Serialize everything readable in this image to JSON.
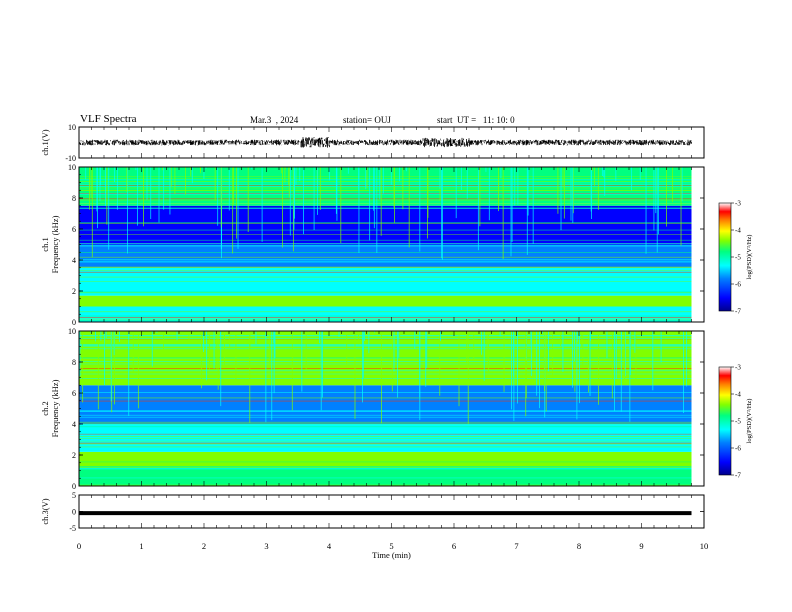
{
  "header": {
    "title": "VLF Spectra",
    "date": "Mar.3  , 2024",
    "station": "station= OUJ",
    "start": "start  UT =   11: 10: 0"
  },
  "chart_data": [
    {
      "type": "line",
      "panel": "ch1-waveform",
      "ylabel": "ch.1(V)",
      "ylim": [
        -10,
        10
      ],
      "y_ticks": [
        "10",
        "-10"
      ],
      "x_range_min": [
        0,
        9.8
      ],
      "signal_level_V": [
        -2,
        3
      ],
      "color": "#000000"
    },
    {
      "type": "heatmap",
      "panel": "ch1-spectrogram",
      "ylabel": "ch.1\nFrequency (kHz)",
      "ylim": [
        0,
        10
      ],
      "y_ticks": [
        "0",
        "2",
        "4",
        "6",
        "8",
        "10"
      ],
      "colorbar": {
        "label": "log(PSD)(V²/Hz)",
        "range": [
          -7,
          -3
        ],
        "ticks": [
          "-3",
          "-4",
          "-5",
          "-6",
          "-7"
        ]
      },
      "bands_khz": [
        {
          "from": 0,
          "to": 1.0,
          "logpsd": -5.6
        },
        {
          "from": 1.0,
          "to": 1.7,
          "logpsd": -5.0
        },
        {
          "from": 1.7,
          "to": 3.5,
          "logpsd": -5.6
        },
        {
          "from": 3.5,
          "to": 5.0,
          "logpsd": -6.0
        },
        {
          "from": 5.0,
          "to": 7.5,
          "logpsd": -6.6
        },
        {
          "from": 7.5,
          "to": 10,
          "logpsd": -5.4
        }
      ]
    },
    {
      "type": "heatmap",
      "panel": "ch2-spectrogram",
      "ylabel": "ch.2\nFrequency (kHz)",
      "ylim": [
        0,
        10
      ],
      "y_ticks": [
        "0",
        "2",
        "4",
        "6",
        "8",
        "10"
      ],
      "colorbar": {
        "label": "log(PSD)(V²/Hz)",
        "range": [
          -7,
          -3
        ],
        "ticks": [
          "-3",
          "-4",
          "-5",
          "-6",
          "-7"
        ]
      },
      "bands_khz": [
        {
          "from": 0,
          "to": 1.2,
          "logpsd": -5.4
        },
        {
          "from": 1.2,
          "to": 2.2,
          "logpsd": -5.0
        },
        {
          "from": 2.2,
          "to": 4.0,
          "logpsd": -5.6
        },
        {
          "from": 4.0,
          "to": 6.5,
          "logpsd": -5.9
        },
        {
          "from": 6.5,
          "to": 10,
          "logpsd": -5.0
        }
      ]
    },
    {
      "type": "line",
      "panel": "ch3-waveform",
      "ylabel": "ch.3(V)",
      "ylim": [
        -5,
        5
      ],
      "y_ticks": [
        "5",
        "0",
        "-5"
      ],
      "x_range_min": [
        0,
        9.8
      ],
      "value_V": -0.5,
      "color": "#000000"
    }
  ],
  "x_axis": {
    "label": "Time (min)",
    "range": [
      0,
      10
    ],
    "ticks": [
      "0",
      "1",
      "2",
      "3",
      "4",
      "5",
      "6",
      "7",
      "8",
      "9",
      "10"
    ]
  },
  "colors": {
    "cmap": [
      "#00008c",
      "#0000ff",
      "#0080ff",
      "#00ffff",
      "#00ff80",
      "#80ff00",
      "#ffff00",
      "#ff8000",
      "#ff0000",
      "#ffffff"
    ]
  }
}
